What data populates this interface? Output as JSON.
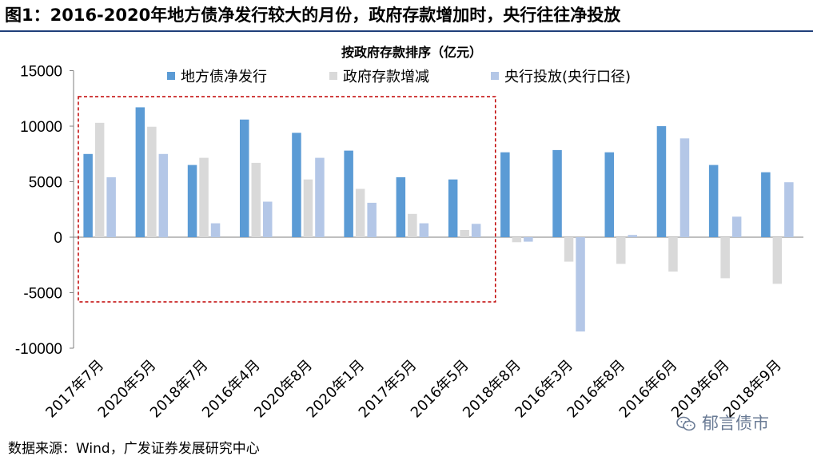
{
  "figure_title": "图1：2016-2020年地方债净发行较大的月份，政府存款增加时，央行往往净投放",
  "source": "数据来源：Wind，广发证券发展研究中心",
  "watermark": "郁言债市",
  "colors": {
    "series_1": "#5b9bd5",
    "series_2": "#d9d9d9",
    "series_3": "#b4c7e7",
    "highlight_box": "#c00000",
    "title_rule": "#1f3f7a"
  },
  "chart_data": {
    "type": "bar",
    "title": "按政府存款排序（亿元）",
    "categories": [
      "2017年7月",
      "2020年5月",
      "2018年7月",
      "2016年4月",
      "2020年8月",
      "2020年1月",
      "2017年5月",
      "2016年5月",
      "2018年8月",
      "2016年3月",
      "2016年8月",
      "2016年6月",
      "2019年6月",
      "2018年9月"
    ],
    "series": [
      {
        "name": "地方债净发行",
        "values": [
          7500,
          11700,
          6500,
          10600,
          9400,
          7800,
          5400,
          5200,
          7650,
          7850,
          7650,
          10000,
          6500,
          5850
        ]
      },
      {
        "name": "政府存款增减",
        "values": [
          10300,
          9950,
          7150,
          6700,
          5200,
          4350,
          2100,
          650,
          -450,
          -2200,
          -2400,
          -3100,
          -3700,
          -4200
        ]
      },
      {
        "name": "央行投放(央行口径)",
        "values": [
          5400,
          7500,
          1250,
          3200,
          7150,
          3100,
          1250,
          1200,
          -400,
          -8500,
          200,
          8900,
          1850,
          4950
        ]
      }
    ],
    "ylim": [
      -10000,
      15000
    ],
    "yticks": [
      "15000",
      "10000",
      "5000",
      "0",
      "-5000",
      "-10000"
    ],
    "ytick_values": [
      15000,
      10000,
      5000,
      0,
      -5000,
      -10000
    ],
    "legend_position": "top",
    "highlight_categories": [
      "2017年7月",
      "2020年5月",
      "2018年7月",
      "2016年4月",
      "2020年8月",
      "2020年1月",
      "2017年5月",
      "2016年5月"
    ],
    "grid": false
  }
}
